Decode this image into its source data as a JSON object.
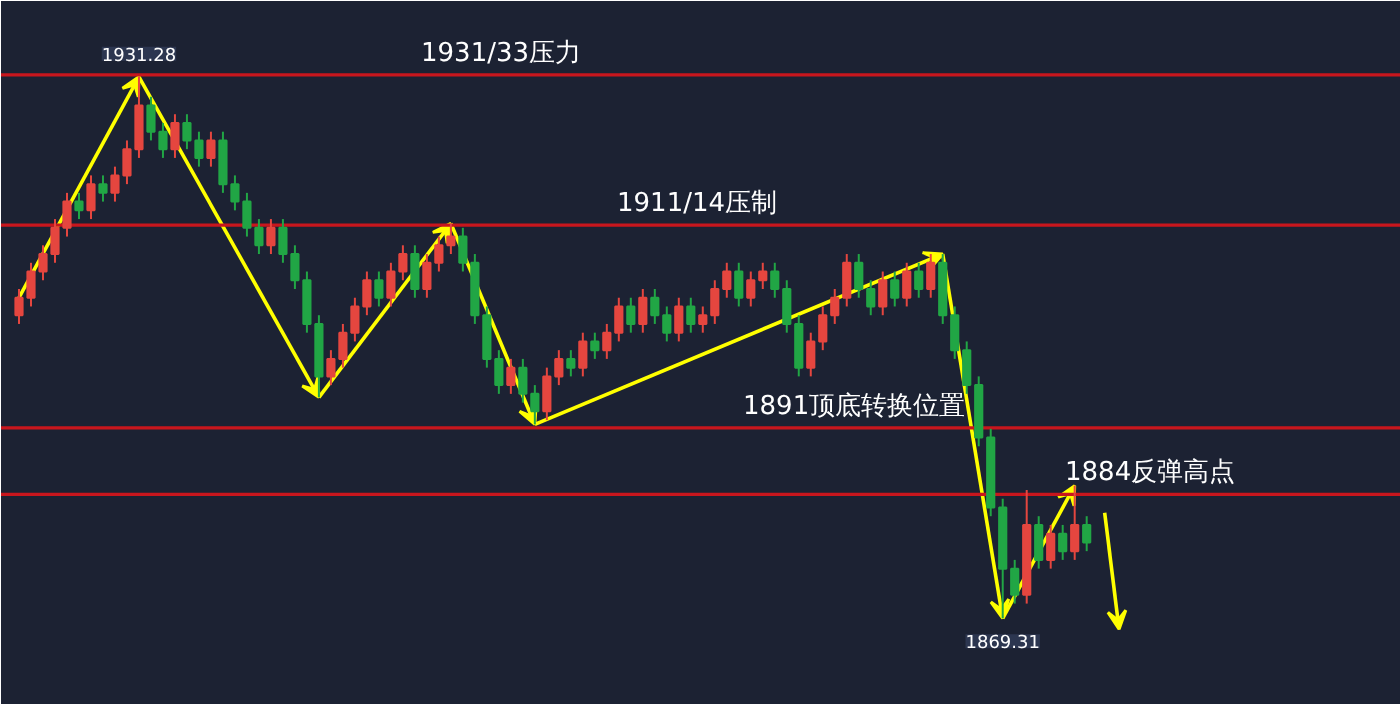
{
  "chart_data": {
    "type": "candlestick",
    "categories": [
      null,
      null,
      null,
      null,
      null,
      null,
      null,
      null,
      null,
      null,
      null,
      null,
      null,
      null,
      null,
      null,
      null,
      null,
      null,
      null,
      null,
      null,
      null,
      null,
      null,
      null,
      null,
      null,
      null,
      null,
      null,
      null,
      null,
      null,
      null,
      null,
      null,
      null,
      null,
      null,
      null,
      null,
      null,
      null,
      null,
      null,
      null,
      null,
      null,
      null,
      null,
      null,
      null,
      null,
      null,
      null,
      null,
      null,
      null,
      null,
      null,
      null,
      null,
      null,
      null,
      null,
      null,
      null,
      null,
      null,
      null,
      null,
      null,
      null,
      null,
      null,
      null,
      null,
      null,
      null,
      null,
      null,
      null,
      null,
      null,
      null,
      null,
      null,
      null,
      null
    ],
    "ohlc": [
      [
        1904,
        1907,
        1903,
        1906
      ],
      [
        1906,
        1910,
        1905,
        1909
      ],
      [
        1909,
        1912,
        1908,
        1911
      ],
      [
        1911,
        1915,
        1910,
        1914
      ],
      [
        1914,
        1918,
        1913,
        1917
      ],
      [
        1917,
        1918,
        1915,
        1916
      ],
      [
        1916,
        1920,
        1915,
        1919
      ],
      [
        1919,
        1920,
        1917,
        1918
      ],
      [
        1918,
        1921,
        1917,
        1920
      ],
      [
        1920,
        1924,
        1919,
        1923
      ],
      [
        1923,
        1931.28,
        1922,
        1928
      ],
      [
        1928,
        1929,
        1924,
        1925
      ],
      [
        1925,
        1926,
        1922,
        1923
      ],
      [
        1923,
        1927,
        1922,
        1926
      ],
      [
        1926,
        1927,
        1923,
        1924
      ],
      [
        1924,
        1925,
        1921,
        1922
      ],
      [
        1922,
        1925,
        1921,
        1924
      ],
      [
        1924,
        1925,
        1918,
        1919
      ],
      [
        1919,
        1920,
        1916,
        1917
      ],
      [
        1917,
        1918,
        1913,
        1914
      ],
      [
        1914,
        1915,
        1911,
        1912
      ],
      [
        1912,
        1915,
        1911,
        1914
      ],
      [
        1914,
        1915,
        1910,
        1911
      ],
      [
        1911,
        1912,
        1907,
        1908
      ],
      [
        1908,
        1909,
        1902,
        1903
      ],
      [
        1903,
        1904,
        1894.6,
        1897
      ],
      [
        1897,
        1900,
        1896,
        1899
      ],
      [
        1899,
        1903,
        1898,
        1902
      ],
      [
        1902,
        1906,
        1901,
        1905
      ],
      [
        1905,
        1909,
        1904,
        1908
      ],
      [
        1908,
        1909,
        1905,
        1906
      ],
      [
        1906,
        1910,
        1905,
        1909
      ],
      [
        1909,
        1912,
        1908,
        1911
      ],
      [
        1911,
        1912,
        1906,
        1907
      ],
      [
        1907,
        1911,
        1906,
        1910
      ],
      [
        1910,
        1913,
        1909,
        1912
      ],
      [
        1912,
        1914.5,
        1911,
        1913
      ],
      [
        1913,
        1914,
        1909,
        1910
      ],
      [
        1910,
        1911,
        1903,
        1904
      ],
      [
        1904,
        1905,
        1898,
        1899
      ],
      [
        1899,
        1900,
        1895,
        1896
      ],
      [
        1896,
        1899,
        1895,
        1898
      ],
      [
        1898,
        1899,
        1894,
        1895
      ],
      [
        1895,
        1896,
        1891.5,
        1893
      ],
      [
        1893,
        1898,
        1892,
        1897
      ],
      [
        1897,
        1900,
        1896,
        1899
      ],
      [
        1899,
        1900,
        1897,
        1898
      ],
      [
        1898,
        1902,
        1897,
        1901
      ],
      [
        1901,
        1902,
        1899,
        1900
      ],
      [
        1900,
        1903,
        1899,
        1902
      ],
      [
        1902,
        1906,
        1901,
        1905
      ],
      [
        1905,
        1906,
        1902,
        1903
      ],
      [
        1903,
        1907,
        1902,
        1906
      ],
      [
        1906,
        1907,
        1903,
        1904
      ],
      [
        1904,
        1905,
        1901,
        1902
      ],
      [
        1902,
        1906,
        1901,
        1905
      ],
      [
        1905,
        1906,
        1902,
        1903
      ],
      [
        1903,
        1905,
        1902,
        1904
      ],
      [
        1904,
        1908,
        1903,
        1907
      ],
      [
        1907,
        1910,
        1906,
        1909
      ],
      [
        1909,
        1910,
        1905,
        1906
      ],
      [
        1906,
        1909,
        1905,
        1908
      ],
      [
        1908,
        1910,
        1907,
        1909
      ],
      [
        1909,
        1910,
        1906,
        1907
      ],
      [
        1907,
        1908,
        1902,
        1903
      ],
      [
        1903,
        1904,
        1897,
        1898
      ],
      [
        1898,
        1902,
        1897,
        1901
      ],
      [
        1901,
        1905,
        1900,
        1904
      ],
      [
        1904,
        1907,
        1903,
        1906
      ],
      [
        1906,
        1911,
        1905,
        1910
      ],
      [
        1910,
        1911,
        1906,
        1907
      ],
      [
        1907,
        1908,
        1904,
        1905
      ],
      [
        1905,
        1909,
        1904,
        1908
      ],
      [
        1908,
        1909,
        1905,
        1906
      ],
      [
        1906,
        1910,
        1905,
        1909
      ],
      [
        1909,
        1910,
        1906,
        1907
      ],
      [
        1907,
        1911,
        1906,
        1910
      ],
      [
        1910,
        1911,
        1903,
        1904
      ],
      [
        1904,
        1905,
        1899,
        1900
      ],
      [
        1900,
        1901,
        1895,
        1896
      ],
      [
        1896,
        1897,
        1889,
        1890
      ],
      [
        1890,
        1891,
        1881,
        1882
      ],
      [
        1882,
        1883,
        1869.31,
        1875
      ],
      [
        1875,
        1876,
        1871,
        1872
      ],
      [
        1872,
        1884,
        1871,
        1880
      ],
      [
        1880,
        1881,
        1875,
        1876
      ],
      [
        1876,
        1880,
        1875,
        1879
      ],
      [
        1879,
        1880,
        1876,
        1877
      ],
      [
        1877,
        1884.5,
        1876,
        1880
      ],
      [
        1880,
        1881,
        1877,
        1878
      ]
    ],
    "colors": [
      "#e5463f",
      "#e5463f",
      "#e5463f",
      "#e5463f",
      "#e5463f",
      "#21a645",
      "#e5463f",
      "#21a645",
      "#e5463f",
      "#e5463f",
      "#e5463f",
      "#21a645",
      "#21a645",
      "#e5463f",
      "#21a645",
      "#21a645",
      "#e5463f",
      "#21a645",
      "#21a645",
      "#21a645",
      "#21a645",
      "#e5463f",
      "#21a645",
      "#21a645",
      "#21a645",
      "#21a645",
      "#e5463f",
      "#e5463f",
      "#e5463f",
      "#e5463f",
      "#21a645",
      "#e5463f",
      "#e5463f",
      "#21a645",
      "#e5463f",
      "#e5463f",
      "#e5463f",
      "#21a645",
      "#21a645",
      "#21a645",
      "#21a645",
      "#e5463f",
      "#21a645",
      "#21a645",
      "#e5463f",
      "#e5463f",
      "#21a645",
      "#e5463f",
      "#21a645",
      "#e5463f",
      "#e5463f",
      "#21a645",
      "#e5463f",
      "#21a645",
      "#21a645",
      "#e5463f",
      "#21a645",
      "#e5463f",
      "#e5463f",
      "#e5463f",
      "#21a645",
      "#e5463f",
      "#e5463f",
      "#21a645",
      "#21a645",
      "#21a645",
      "#e5463f",
      "#e5463f",
      "#e5463f",
      "#e5463f",
      "#21a645",
      "#21a645",
      "#e5463f",
      "#21a645",
      "#e5463f",
      "#21a645",
      "#e5463f",
      "#21a645",
      "#21a645",
      "#21a645",
      "#21a645",
      "#21a645",
      "#21a645",
      "#21a645",
      "#e5463f",
      "#21a645",
      "#e5463f",
      "#21a645",
      "#e5463f",
      "#21a645"
    ],
    "ref_lines": [
      {
        "axis": "y",
        "value": 1931.5,
        "label": "1931/33压力",
        "color": "#c8161d"
      },
      {
        "axis": "y",
        "value": 1914.3,
        "label": "1911/14压制",
        "color": "#c8161d"
      },
      {
        "axis": "y",
        "value": 1891.1,
        "label": "1891顶底转换位置",
        "color": "#c8161d"
      },
      {
        "axis": "y",
        "value": 1883.5,
        "label": "1884反弹高点",
        "color": "#c8161d"
      }
    ],
    "annotations": [
      {
        "text": "1931.28",
        "y": 1931.28
      },
      {
        "text": "1869.31",
        "y": 1869.31
      }
    ],
    "grid": false
  }
}
